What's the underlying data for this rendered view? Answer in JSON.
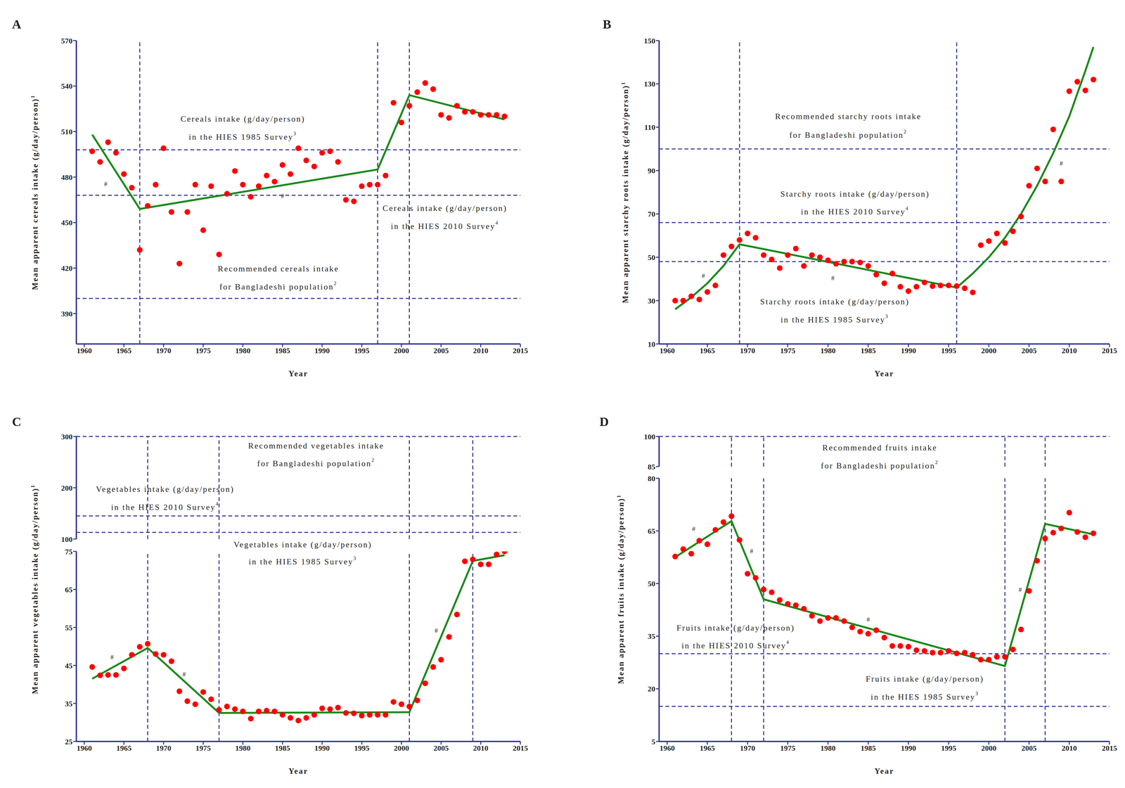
{
  "chart_data": [
    {
      "panel": "A",
      "type": "scatter",
      "grid": false,
      "x_label": "Year",
      "y_label": "Mean apparent cereals intake (g/day/person)",
      "y_label_note": "1",
      "x": [
        1961,
        1962,
        1963,
        1964,
        1965,
        1966,
        1967,
        1968,
        1969,
        1970,
        1971,
        1972,
        1973,
        1974,
        1975,
        1976,
        1977,
        1978,
        1979,
        1980,
        1981,
        1982,
        1983,
        1984,
        1985,
        1986,
        1987,
        1988,
        1989,
        1990,
        1991,
        1992,
        1993,
        1994,
        1995,
        1996,
        1997,
        1998,
        1999,
        2000,
        2001,
        2002,
        2003,
        2004,
        2005,
        2006,
        2007,
        2008,
        2009,
        2010,
        2011,
        2012,
        2013
      ],
      "series": [
        {
          "type": "scatter",
          "color": "#ff0000",
          "marker": "circle",
          "values": [
            497,
            490,
            503,
            496,
            482,
            473,
            432,
            461,
            475,
            499,
            457,
            423,
            457,
            475,
            445,
            474,
            429,
            469,
            484,
            475,
            467,
            474,
            481,
            477,
            488,
            482,
            499,
            491,
            487,
            496,
            497,
            490,
            465,
            464,
            474,
            475,
            475,
            481,
            529,
            516,
            527,
            536,
            542,
            538,
            521,
            519,
            527,
            523,
            523,
            521,
            521,
            521,
            520
          ]
        },
        {
          "type": "line",
          "color": "#1b8a1b",
          "line_style": "solid",
          "x": [
            1961,
            1967,
            1997,
            2001,
            2013
          ],
          "values": [
            508,
            459,
            485,
            534,
            518
          ]
        }
      ],
      "xlim": [
        1959,
        2015
      ],
      "xticks": [
        1960,
        1965,
        1970,
        1975,
        1980,
        1985,
        1990,
        1995,
        2000,
        2005,
        2010,
        2015
      ],
      "ylim": [
        370,
        570
      ],
      "yticks": [
        390,
        420,
        450,
        480,
        510,
        540,
        570
      ],
      "joinpoints": [
        1967,
        1997,
        2001
      ],
      "reference_lines": [
        {
          "value": 498,
          "text": [
            "Cereals intake (g/day/person)",
            "in the HIES 1985 Survey"
          ],
          "note": "3"
        },
        {
          "value": 468,
          "text": [
            "Cereals intake (g/day/person)",
            "in the HIES 2010 Survey"
          ],
          "note": "4"
        },
        {
          "value": 400,
          "text": [
            "Recommended cereals intake",
            "for Bangladeshi population"
          ],
          "note": "2"
        }
      ],
      "annotations": [
        {
          "x": 1962.7,
          "y": 475,
          "text": "#"
        },
        {
          "x": 1985,
          "y": 467,
          "text": "#"
        }
      ]
    },
    {
      "panel": "B",
      "type": "scatter",
      "grid": false,
      "x_label": "Year",
      "y_label": "Mean apparent starchy roots intake (g/day/person)",
      "y_label_note": "1",
      "x": [
        1961,
        1962,
        1963,
        1964,
        1965,
        1966,
        1967,
        1968,
        1969,
        1970,
        1971,
        1972,
        1973,
        1974,
        1975,
        1976,
        1977,
        1978,
        1979,
        1980,
        1981,
        1982,
        1983,
        1984,
        1985,
        1986,
        1987,
        1988,
        1989,
        1990,
        1991,
        1992,
        1993,
        1994,
        1995,
        1996,
        1997,
        1998,
        1999,
        2000,
        2001,
        2002,
        2003,
        2004,
        2005,
        2006,
        2007,
        2008,
        2009,
        2010,
        2011,
        2012,
        2013
      ],
      "series": [
        {
          "type": "scatter",
          "color": "#ff0000",
          "marker": "circle",
          "values": [
            30,
            30,
            32,
            30.5,
            34,
            37,
            51,
            55,
            58,
            61,
            59,
            51,
            49,
            45,
            51,
            54,
            46,
            51,
            50,
            48.6,
            47,
            48,
            48,
            47.6,
            46,
            42,
            38,
            42.5,
            36.4,
            34.4,
            36.4,
            38.4,
            36.7,
            37,
            37,
            36.7,
            35.7,
            33.8,
            55.6,
            57.5,
            61,
            56.6,
            62,
            68.8,
            83,
            91,
            85,
            109,
            85,
            126.6,
            131,
            127,
            132
          ]
        },
        {
          "type": "line",
          "color": "#1b8a1b",
          "line_style": "solid",
          "x": [
            1961,
            1963,
            1965,
            1967,
            1969,
            1996,
            1998,
            2000,
            2002,
            2004,
            2006,
            2008,
            2010,
            2012,
            2013
          ],
          "values": [
            26,
            31.5,
            38,
            46,
            56,
            36,
            42.5,
            50,
            59,
            70,
            83,
            98,
            115,
            136,
            147
          ]
        }
      ],
      "xlim": [
        1959,
        2015
      ],
      "xticks": [
        1960,
        1965,
        1970,
        1975,
        1980,
        1985,
        1990,
        1995,
        2000,
        2005,
        2010,
        2015
      ],
      "ylim": [
        10,
        150
      ],
      "yticks": [
        10,
        30,
        50,
        70,
        90,
        110,
        130,
        150
      ],
      "joinpoints": [
        1969,
        1996
      ],
      "reference_lines": [
        {
          "value": 100,
          "text": [
            "Recommended starchy roots intake",
            "for Bangladeshi population"
          ],
          "note": "2"
        },
        {
          "value": 66,
          "text": [
            "Starchy roots intake (g/day/person)",
            "in the HIES 2010 Survey"
          ],
          "note": "4"
        },
        {
          "value": 48,
          "text": [
            "Starchy roots intake (g/day/person)",
            "in the HIES 1985 Survey"
          ],
          "note": "3"
        }
      ],
      "annotations": [
        {
          "x": 1964.5,
          "y": 41,
          "text": "#"
        },
        {
          "x": 1980.6,
          "y": 40,
          "text": "#"
        },
        {
          "x": 2009,
          "y": 93,
          "text": "#"
        }
      ]
    },
    {
      "panel": "C",
      "type": "scatter",
      "grid": false,
      "x_label": "Year",
      "y_label": "Mean apparent vegetables intake (g/day/person)",
      "y_label_note": "1",
      "x": [
        1961,
        1962,
        1963,
        1964,
        1965,
        1966,
        1967,
        1968,
        1969,
        1970,
        1971,
        1972,
        1973,
        1974,
        1975,
        1976,
        1977,
        1978,
        1979,
        1980,
        1981,
        1982,
        1983,
        1984,
        1985,
        1986,
        1987,
        1988,
        1989,
        1990,
        1991,
        1992,
        1993,
        1994,
        1995,
        1996,
        1997,
        1998,
        1999,
        2000,
        2001,
        2002,
        2003,
        2004,
        2005,
        2006,
        2007,
        2008,
        2009,
        2010,
        2011,
        2012,
        2013
      ],
      "series": [
        {
          "type": "scatter",
          "color": "#ff0000",
          "marker": "circle",
          "values": [
            44.6,
            42.4,
            42.5,
            42.5,
            44.2,
            47.8,
            49.9,
            50.7,
            48,
            47.8,
            46.1,
            38.2,
            35.6,
            34.8,
            38,
            36.1,
            33.3,
            34.2,
            33.5,
            32.9,
            31,
            32.9,
            33.1,
            32.9,
            32,
            31.2,
            30.5,
            31.2,
            32,
            33.7,
            33.5,
            33.9,
            32.5,
            32.4,
            31.8,
            32,
            32,
            32,
            35.4,
            34.8,
            34.2,
            35.8,
            40.3,
            44.6,
            46.5,
            52.5,
            58.4,
            72.4,
            72.9,
            71.6,
            71.6,
            74.2,
            75
          ]
        },
        {
          "type": "line",
          "color": "#1b8a1b",
          "line_style": "solid",
          "x": [
            1961,
            1968,
            1977,
            2001,
            2009,
            2013
          ],
          "values": [
            41.5,
            49.6,
            32.5,
            32.7,
            72.5,
            74
          ]
        }
      ],
      "xlim": [
        1959,
        2015
      ],
      "xticks": [
        1960,
        1965,
        1970,
        1975,
        1980,
        1985,
        1990,
        1995,
        2000,
        2005,
        2010,
        2015
      ],
      "ylim": [
        25,
        75
      ],
      "yticks": [
        25,
        35,
        45,
        55,
        65,
        75
      ],
      "axis_break": {
        "ylim": [
          100,
          300
        ],
        "yticks": [
          100,
          200,
          300
        ]
      },
      "joinpoints": [
        1968,
        1977,
        2001,
        2009
      ],
      "reference_lines": [
        {
          "value": 300,
          "text": [
            "Recommended vegetables intake",
            "for Bangladeshi population"
          ],
          "note": "2"
        },
        {
          "value": 145,
          "text": [
            "Vegetables intake (g/day/person)",
            "in the HIES 2010 Survey"
          ],
          "note": "4"
        },
        {
          "value": 113,
          "text": [
            "Vegetables intake (g/day/person)",
            "in the HIES 1985 Survey"
          ],
          "note": "3"
        }
      ],
      "annotations": [
        {
          "x": 1963.5,
          "y": 47,
          "text": "#"
        },
        {
          "x": 1972.6,
          "y": 42.5,
          "text": "#"
        },
        {
          "x": 2004.4,
          "y": 54,
          "text": "#"
        }
      ]
    },
    {
      "panel": "D",
      "type": "scatter",
      "grid": false,
      "x_label": "Year",
      "y_label": "Mean apparent fruits intake (g/day/person)",
      "y_label_note": "1",
      "x": [
        1961,
        1962,
        1963,
        1964,
        1965,
        1966,
        1967,
        1968,
        1969,
        1970,
        1971,
        1972,
        1973,
        1974,
        1975,
        1976,
        1977,
        1978,
        1979,
        1980,
        1981,
        1982,
        1983,
        1984,
        1985,
        1986,
        1987,
        1988,
        1989,
        1990,
        1991,
        1992,
        1993,
        1994,
        1995,
        1996,
        1997,
        1998,
        1999,
        2000,
        2001,
        2002,
        2003,
        2004,
        2005,
        2006,
        2007,
        2008,
        2009,
        2010,
        2011,
        2012,
        2013
      ],
      "series": [
        {
          "type": "scatter",
          "color": "#ff0000",
          "marker": "circle",
          "values": [
            57.7,
            59.8,
            58.5,
            62.2,
            61.2,
            65.3,
            67.5,
            69.2,
            62.4,
            52.8,
            51.6,
            48.3,
            47.5,
            45.3,
            44.2,
            43.8,
            42.8,
            40.8,
            39.3,
            40.2,
            40.2,
            39.3,
            37.5,
            36.3,
            35.7,
            36.7,
            34.6,
            32.2,
            32.2,
            32,
            31,
            30.8,
            30.3,
            30.3,
            30.8,
            30.1,
            30.3,
            29.7,
            28.3,
            28.3,
            29.1,
            29.1,
            31.2,
            36.9,
            47.9,
            56.5,
            62.8,
            64.5,
            65.7,
            70.2,
            64.7,
            63.2,
            64.3
          ]
        },
        {
          "type": "line",
          "color": "#1b8a1b",
          "line_style": "solid",
          "x": [
            1961,
            1968,
            1972,
            2002,
            2007,
            2013
          ],
          "values": [
            57.5,
            67.8,
            45.5,
            26.5,
            67,
            64
          ]
        }
      ],
      "xlim": [
        1959,
        2015
      ],
      "xticks": [
        1960,
        1965,
        1970,
        1975,
        1980,
        1985,
        1990,
        1995,
        2000,
        2005,
        2010,
        2015
      ],
      "ylim": [
        5,
        80
      ],
      "yticks": [
        5,
        20,
        35,
        50,
        65,
        80
      ],
      "axis_break": {
        "ylim": [
          85,
          100
        ],
        "yticks": [
          85,
          100
        ]
      },
      "joinpoints": [
        1968,
        1972,
        2002,
        2007
      ],
      "reference_lines": [
        {
          "value": 100,
          "text": [
            "Recommended fruits intake",
            "for Bangladeshi population"
          ],
          "note": "2"
        },
        {
          "value": 30,
          "text": [
            "Fruits intake (g/day/person)",
            "in the HIES 2010 Survey"
          ],
          "note": "4"
        },
        {
          "value": 15,
          "text": [
            "Fruits intake (g/day/person)",
            "in the HIES 1985 Survey"
          ],
          "note": "3"
        }
      ],
      "annotations": [
        {
          "x": 1963.3,
          "y": 65.3,
          "text": "#"
        },
        {
          "x": 1970.5,
          "y": 59,
          "text": "#"
        },
        {
          "x": 1985,
          "y": 39.5,
          "text": "#"
        },
        {
          "x": 2003.9,
          "y": 48,
          "text": "#"
        }
      ]
    }
  ]
}
